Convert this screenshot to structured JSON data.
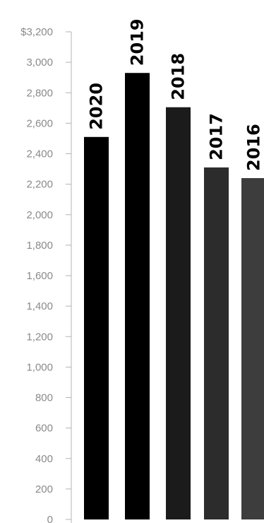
{
  "chart_data": {
    "type": "bar",
    "categories": [
      "2020",
      "2019",
      "2018",
      "2017",
      "2016"
    ],
    "values": [
      2510,
      2930,
      2705,
      2310,
      2240
    ],
    "bar_labels": [
      "2020",
      "2019",
      "2018",
      "2017",
      "2016"
    ],
    "bar_colors": [
      "#000000",
      "#000000",
      "#1b1b1b",
      "#2c2c2c",
      "#3d3d3d"
    ],
    "axis_color": "#b3b3b3",
    "yticks": [
      0,
      200,
      400,
      600,
      800,
      1000,
      1200,
      1400,
      1600,
      1800,
      2000,
      2200,
      2400,
      2600,
      2800,
      3000,
      3200
    ],
    "ytick_labels": [
      "0",
      "200",
      "400",
      "600",
      "800",
      "1,000",
      "1,200",
      "1,400",
      "1,600",
      "1,800",
      "2,000",
      "2,200",
      "2,400",
      "2,600",
      "2,800",
      "3,000",
      "$3,200"
    ],
    "ylim": [
      0,
      3200
    ],
    "grid": false,
    "legend": "none"
  }
}
